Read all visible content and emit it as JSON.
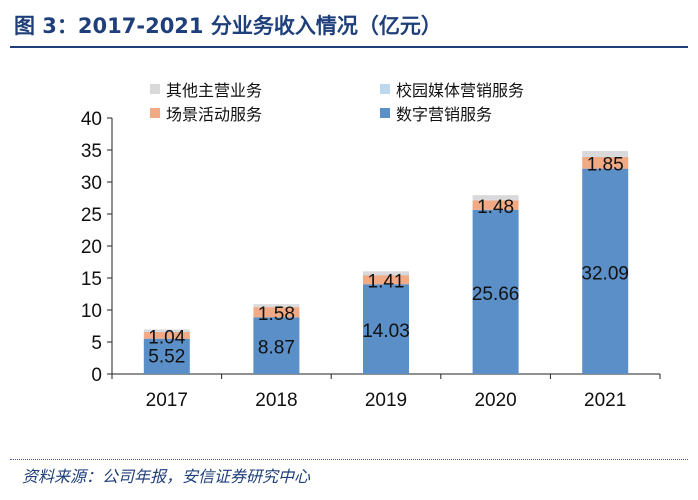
{
  "figure": {
    "title": "图 3：2017-2021 分业务收入情况（亿元）",
    "source": "资料来源：公司年报，安信证券研究中心"
  },
  "chart_data": {
    "type": "bar",
    "stacked": true,
    "categories": [
      "2017",
      "2018",
      "2019",
      "2020",
      "2021"
    ],
    "ylim": [
      0,
      40
    ],
    "yticks": [
      0,
      5,
      10,
      15,
      20,
      25,
      30,
      35,
      40
    ],
    "grid": false,
    "legend_position": "top",
    "series": [
      {
        "name": "数字营销服务",
        "color": "#5b8fc7",
        "values": [
          5.52,
          8.87,
          14.03,
          25.66,
          32.09
        ],
        "labels": [
          "5.52",
          "8.87",
          "14.03",
          "25.66",
          "32.09"
        ]
      },
      {
        "name": "场景活动服务",
        "color": "#f2aa84",
        "values": [
          1.04,
          1.58,
          1.41,
          1.48,
          1.85
        ],
        "labels": [
          "1.04",
          "1.58",
          "1.41",
          "1.48",
          "1.85"
        ]
      },
      {
        "name": "校园媒体营销服务",
        "color": "#bcd7ee",
        "values": [
          0.1,
          0.05,
          0.1,
          0.1,
          0.1
        ]
      },
      {
        "name": "其他主营业务",
        "color": "#d9d9d9",
        "values": [
          0.3,
          0.4,
          0.5,
          0.7,
          0.8
        ]
      }
    ],
    "legend_order": [
      "其他主营业务",
      "校园媒体营销服务",
      "场景活动服务",
      "数字营销服务"
    ]
  }
}
